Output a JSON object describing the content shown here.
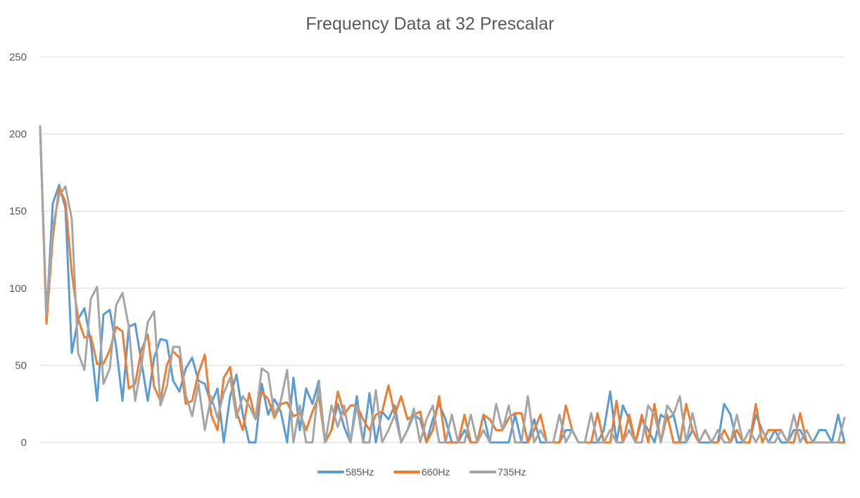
{
  "chart_data": {
    "type": "line",
    "title": "Frequency Data at 32 Prescalar",
    "xlabel": "",
    "ylabel": "",
    "ylim": [
      0,
      250
    ],
    "yticks": [
      0,
      50,
      100,
      150,
      200,
      250
    ],
    "grid": true,
    "legend_position": "bottom",
    "x": [
      1,
      2,
      3,
      4,
      5,
      6,
      7,
      8,
      9,
      10,
      11,
      12,
      13,
      14,
      15,
      16,
      17,
      18,
      19,
      20,
      21,
      22,
      23,
      24,
      25,
      26,
      27,
      28,
      29,
      30,
      31,
      32,
      33,
      34,
      35,
      36,
      37,
      38,
      39,
      40,
      41,
      42,
      43,
      44,
      45,
      46,
      47,
      48,
      49,
      50,
      51,
      52,
      53,
      54,
      55,
      56,
      57,
      58,
      59,
      60,
      61,
      62,
      63,
      64,
      65,
      66,
      67,
      68,
      69,
      70,
      71,
      72,
      73,
      74,
      75,
      76,
      77,
      78,
      79,
      80,
      81,
      82,
      83,
      84,
      85,
      86,
      87,
      88,
      89,
      90,
      91,
      92,
      93,
      94,
      95,
      96,
      97,
      98,
      99,
      100,
      101,
      102,
      103,
      104,
      105,
      106,
      107,
      108,
      109,
      110,
      111,
      112,
      113,
      114,
      115,
      116,
      117,
      118,
      119,
      120,
      121,
      122,
      123,
      124,
      125,
      126,
      127,
      128
    ],
    "series": [
      {
        "name": "585Hz",
        "color": "#5B9BD5",
        "values": [
          205,
          80,
          155,
          167,
          152,
          58,
          80,
          87,
          65,
          27,
          83,
          86,
          62,
          27,
          75,
          77,
          52,
          27,
          55,
          67,
          66,
          40,
          33,
          48,
          55,
          40,
          38,
          25,
          35,
          0,
          30,
          44,
          18,
          0,
          0,
          38,
          18,
          28,
          20,
          0,
          42,
          8,
          35,
          25,
          40,
          0,
          8,
          25,
          10,
          0,
          30,
          0,
          32,
          0,
          20,
          15,
          24,
          0,
          8,
          18,
          15,
          0,
          15,
          25,
          15,
          0,
          0,
          8,
          0,
          0,
          18,
          0,
          0,
          0,
          0,
          18,
          0,
          0,
          15,
          0,
          0,
          0,
          0,
          8,
          8,
          0,
          0,
          0,
          0,
          8,
          33,
          0,
          24,
          15,
          0,
          15,
          8,
          0,
          18,
          15,
          18,
          0,
          0,
          8,
          0,
          0,
          0,
          0,
          25,
          18,
          0,
          0,
          0,
          18,
          8,
          0,
          8,
          0,
          0,
          8,
          8,
          0,
          0,
          8,
          8,
          0,
          18,
          0
        ]
      },
      {
        "name": "660Hz",
        "color": "#ED7D31",
        "values": [
          205,
          77,
          133,
          165,
          156,
          110,
          80,
          68,
          69,
          51,
          51,
          60,
          75,
          72,
          35,
          38,
          60,
          70,
          36,
          27,
          50,
          59,
          55,
          25,
          27,
          45,
          57,
          18,
          8,
          42,
          49,
          20,
          8,
          32,
          15,
          33,
          28,
          16,
          25,
          26,
          17,
          19,
          8,
          20,
          30,
          0,
          8,
          33,
          18,
          24,
          24,
          15,
          8,
          18,
          20,
          37,
          18,
          30,
          15,
          18,
          20,
          0,
          8,
          30,
          0,
          0,
          0,
          18,
          0,
          0,
          18,
          15,
          8,
          8,
          16,
          19,
          19,
          0,
          8,
          18,
          0,
          0,
          0,
          24,
          8,
          0,
          0,
          0,
          19,
          0,
          0,
          27,
          0,
          18,
          0,
          18,
          0,
          25,
          0,
          18,
          0,
          0,
          25,
          8,
          0,
          8,
          0,
          0,
          8,
          0,
          8,
          0,
          0,
          25,
          0,
          8,
          8,
          8,
          0,
          0,
          19,
          0,
          0,
          0,
          0,
          0,
          0,
          0
        ]
      },
      {
        "name": "735Hz",
        "color": "#A5A5A5",
        "values": [
          205,
          83,
          140,
          160,
          166,
          145,
          58,
          47,
          93,
          101,
          38,
          48,
          89,
          97,
          75,
          27,
          50,
          78,
          85,
          24,
          36,
          62,
          62,
          31,
          17,
          38,
          8,
          30,
          16,
          32,
          42,
          16,
          30,
          24,
          15,
          48,
          45,
          18,
          27,
          47,
          0,
          24,
          0,
          0,
          38,
          0,
          24,
          10,
          24,
          0,
          24,
          0,
          0,
          34,
          0,
          8,
          18,
          0,
          8,
          22,
          0,
          15,
          24,
          0,
          0,
          18,
          0,
          0,
          18,
          0,
          8,
          0,
          25,
          8,
          24,
          0,
          0,
          30,
          0,
          8,
          0,
          0,
          18,
          0,
          8,
          0,
          0,
          19,
          0,
          0,
          8,
          0,
          0,
          8,
          0,
          0,
          24,
          18,
          0,
          24,
          18,
          30,
          0,
          19,
          0,
          8,
          0,
          8,
          0,
          0,
          18,
          0,
          8,
          0,
          8,
          0,
          0,
          8,
          0,
          18,
          0,
          8,
          0,
          0,
          0,
          0,
          0,
          16
        ]
      }
    ]
  }
}
